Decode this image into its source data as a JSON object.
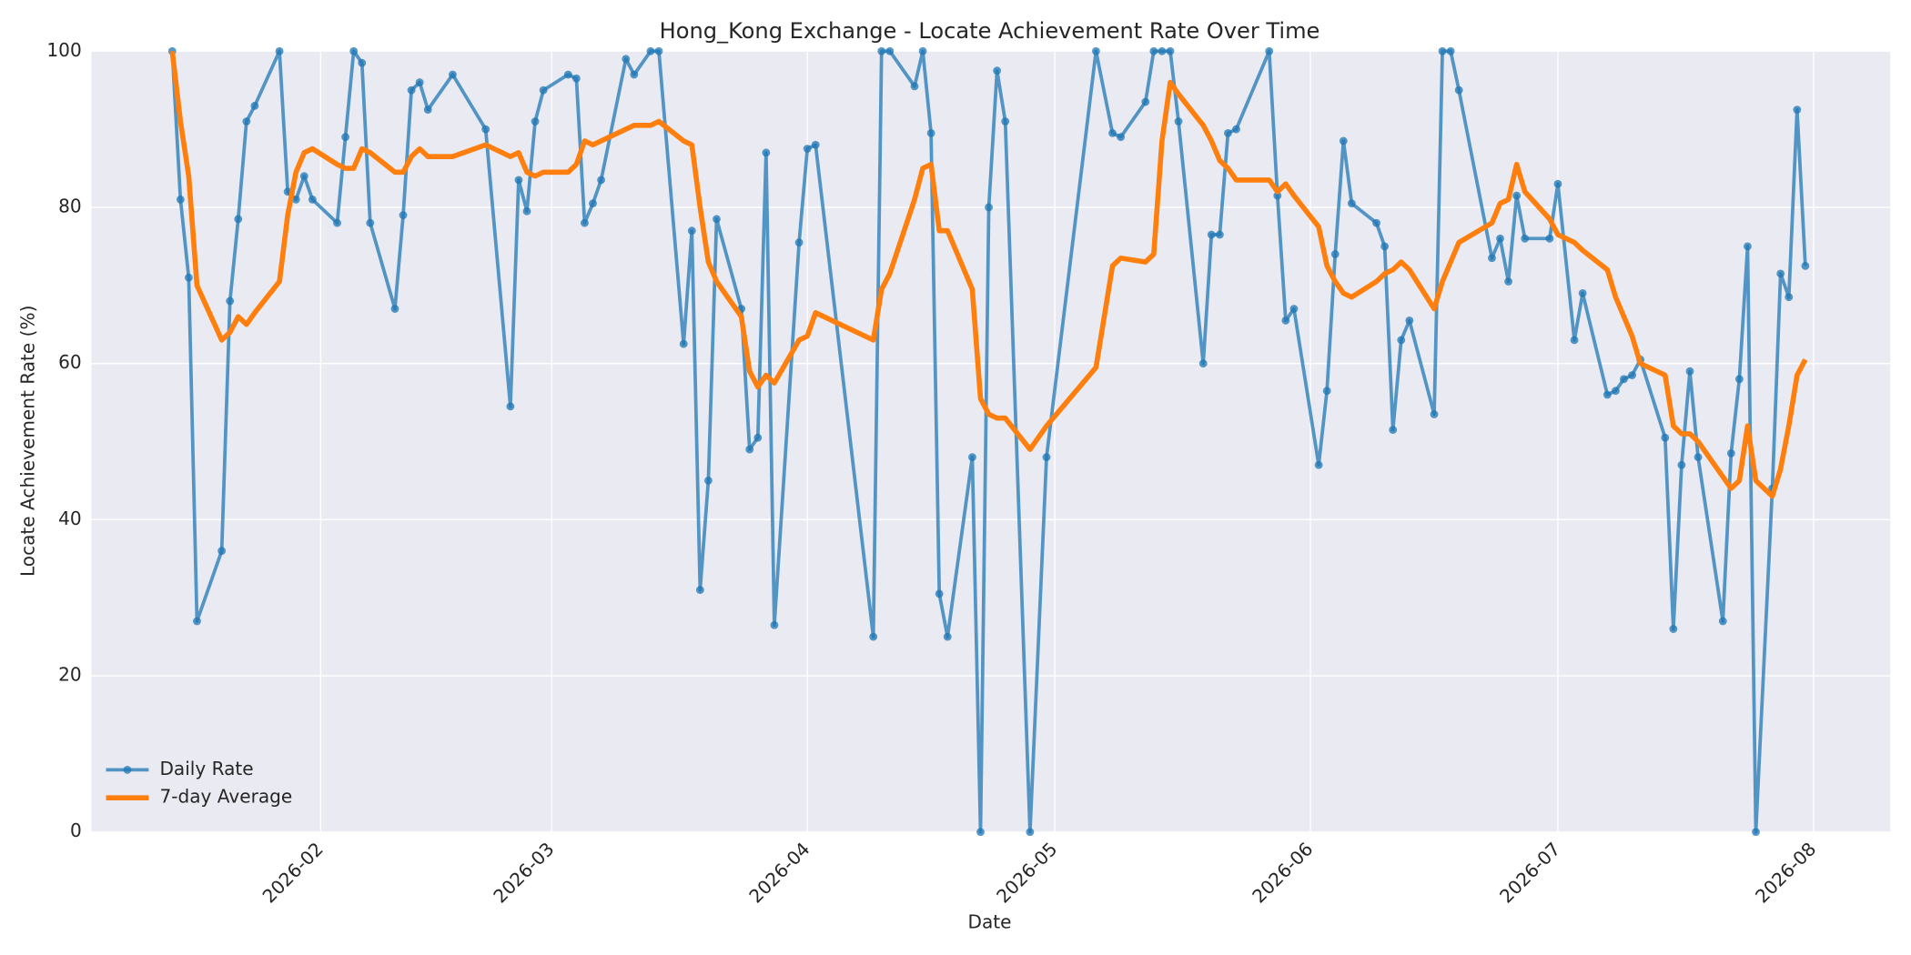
{
  "chart_data": {
    "type": "line",
    "title": "Hong_Kong Exchange - Locate Achievement Rate Over Time",
    "xlabel": "Date",
    "ylabel": "Locate Achievement Rate (%)",
    "x": [
      13,
      14,
      15,
      16,
      19,
      20,
      21,
      22,
      23,
      26,
      27,
      28,
      29,
      30,
      33,
      34,
      35,
      36,
      37,
      40,
      41,
      42,
      43,
      44,
      47,
      51,
      54,
      55,
      56,
      57,
      58,
      61,
      62,
      63,
      64,
      65,
      68,
      69,
      71,
      72,
      75,
      76,
      77,
      78,
      79,
      82,
      83,
      84,
      85,
      86,
      89,
      90,
      91,
      98,
      99,
      100,
      103,
      104,
      105,
      106,
      107,
      110,
      111,
      112,
      113,
      114,
      117,
      119,
      125,
      127,
      128,
      131,
      132,
      133,
      134,
      135,
      138,
      139,
      140,
      141,
      142,
      146,
      147,
      148,
      149,
      152,
      153,
      154,
      155,
      156,
      159,
      160,
      161,
      162,
      163,
      166,
      167,
      168,
      169,
      173,
      174,
      175,
      176,
      177,
      180,
      181,
      183,
      184,
      187,
      188,
      189,
      190,
      191,
      194,
      195,
      196,
      197,
      198,
      201,
      202,
      203,
      204,
      205,
      207,
      208,
      209,
      210,
      211
    ],
    "series": [
      {
        "name": "Daily Rate",
        "color": "#1f77b4",
        "markers": true,
        "values": [
          100,
          81,
          71,
          27,
          36,
          68,
          78.5,
          91,
          93,
          100,
          82,
          81,
          84,
          81,
          78,
          89,
          100,
          98.5,
          78,
          67,
          79,
          95,
          96,
          92.5,
          97,
          90,
          54.5,
          83.5,
          79.5,
          91,
          95,
          97,
          96.5,
          78,
          80.5,
          83.5,
          99,
          97,
          100,
          100,
          62.5,
          77,
          31,
          45,
          78.5,
          67,
          49,
          50.5,
          87,
          26.5,
          75.5,
          87.5,
          88,
          25,
          100,
          100,
          95.5,
          100,
          89.5,
          30.5,
          25,
          48,
          0,
          80,
          97.5,
          91,
          0,
          48,
          100,
          89.5,
          89,
          93.5,
          100,
          100,
          100,
          91,
          60,
          76.5,
          76.5,
          89.5,
          90,
          100,
          81.5,
          65.5,
          67,
          47,
          56.5,
          74,
          88.5,
          80.5,
          78,
          75,
          51.5,
          63,
          65.5,
          53.5,
          100,
          100,
          95,
          73.5,
          76,
          70.5,
          81.5,
          76,
          76,
          83,
          63,
          69,
          56,
          56.5,
          58,
          58.5,
          60.5,
          50.5,
          26,
          47,
          59,
          48,
          27,
          48.5,
          58,
          75,
          0,
          44,
          71.5,
          68.5,
          92.5,
          72.5
        ]
      },
      {
        "name": "7-day Average",
        "color": "#ff7f0e",
        "markers": false,
        "values": [
          100,
          91,
          84,
          70,
          63,
          64,
          66,
          65,
          66.5,
          70.5,
          79,
          84.5,
          87,
          87.5,
          85.5,
          85,
          85,
          87.5,
          87,
          84.5,
          84.5,
          86.5,
          87.5,
          86.5,
          86.5,
          88,
          86.5,
          87,
          84.5,
          84,
          84.5,
          84.5,
          85.5,
          88.5,
          88,
          88.5,
          90,
          90.5,
          90.5,
          91,
          88.5,
          88,
          80,
          73,
          70.5,
          66,
          59,
          57,
          58.5,
          57.5,
          63,
          63.5,
          66.5,
          63,
          69.5,
          71.5,
          81,
          85,
          85.5,
          77,
          77,
          69.5,
          55.5,
          53.5,
          53,
          53,
          49,
          52,
          59.5,
          72.5,
          73.5,
          73,
          74,
          88.5,
          96,
          94.5,
          90.5,
          88.5,
          86,
          85,
          83.5,
          83.5,
          82,
          83,
          81.5,
          77.5,
          72.5,
          70.5,
          69,
          68.5,
          70.5,
          71.5,
          72,
          73,
          72,
          67,
          70.5,
          73,
          75.5,
          78,
          80.5,
          81,
          85.5,
          82,
          78.5,
          76.5,
          75.5,
          74.5,
          72,
          68.5,
          66,
          63.5,
          60,
          58.5,
          52,
          51,
          51,
          50,
          45.5,
          44,
          45,
          52,
          45,
          43,
          46.5,
          52,
          58.5,
          60.5
        ]
      }
    ],
    "xlim": [
      3.2,
      221.3
    ],
    "xticks": [
      {
        "value": 31,
        "label": "2026-02"
      },
      {
        "value": 59,
        "label": "2026-03"
      },
      {
        "value": 90,
        "label": "2026-04"
      },
      {
        "value": 120,
        "label": "2026-05"
      },
      {
        "value": 151,
        "label": "2026-06"
      },
      {
        "value": 181,
        "label": "2026-07"
      },
      {
        "value": 212,
        "label": "2026-08"
      }
    ],
    "ylim": [
      0,
      100
    ],
    "yticks": [
      0,
      20,
      40,
      60,
      80,
      100
    ],
    "grid": true,
    "legend": "lower left"
  }
}
